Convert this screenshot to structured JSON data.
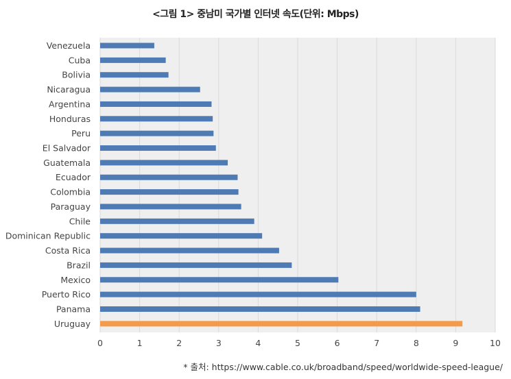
{
  "chart_data": {
    "type": "bar",
    "orientation": "horizontal",
    "title": "<그림 1> 중남미 국가별 인터넷 속도(단위: Mbps)",
    "categories": [
      "Venezuela",
      "Cuba",
      "Bolivia",
      "Nicaragua",
      "Argentina",
      "Honduras",
      "Peru",
      "El Salvador",
      "Guatemala",
      "Ecuador",
      "Colombia",
      "Paraguay",
      "Chile",
      "Dominican Republic",
      "Costa Rica",
      "Brazil",
      "Mexico",
      "Puerto Rico",
      "Panama",
      "Uruguay"
    ],
    "values": [
      1.37,
      1.66,
      1.73,
      2.53,
      2.82,
      2.85,
      2.87,
      2.93,
      3.23,
      3.48,
      3.5,
      3.57,
      3.9,
      4.1,
      4.53,
      4.85,
      6.03,
      8.0,
      8.1,
      9.17
    ],
    "highlight": "Uruguay",
    "xlim": [
      0,
      10
    ],
    "xticks": [
      "0",
      "1",
      "2",
      "3",
      "4",
      "5",
      "6",
      "7",
      "8",
      "9",
      "10"
    ],
    "grid": "vertical",
    "colors": {
      "bar": "#4F7BB5",
      "highlight": "#F39A4B",
      "grid": "#DADADA",
      "plot_bg": "#EFEFEF"
    },
    "source": "* 출처: https://www.cable.co.uk/broadband/speed/worldwide-speed-league/"
  }
}
